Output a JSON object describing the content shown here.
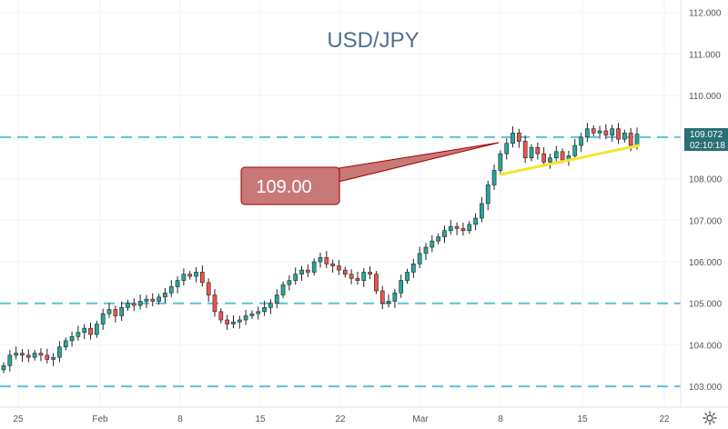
{
  "chart_data": {
    "type": "candlestick",
    "title": "USD/JPY",
    "x_tick_labels": [
      "25",
      "Feb",
      "8",
      "15",
      "22",
      "Mar",
      "8",
      "15",
      "22"
    ],
    "y_tick_labels": [
      "103.000",
      "104.000",
      "105.000",
      "106.000",
      "107.000",
      "108.000",
      "109.000",
      "110.000",
      "111.000",
      "112.000"
    ],
    "ylim": [
      102.5,
      112.3
    ],
    "price_label": {
      "value": "109.072",
      "time": "02:10:18"
    },
    "annotation": "109.00",
    "horizontal_levels": [
      109.0,
      105.0,
      103.0
    ],
    "trendline": {
      "from": [
        108.1,
        "Mar 8"
      ],
      "to": [
        108.8,
        "Mar 19"
      ]
    },
    "series": [
      {
        "points": [
          103.5,
          103.75,
          103.8,
          103.75,
          103.7,
          103.8,
          103.75,
          103.65,
          103.7,
          103.95,
          104.1,
          104.2,
          104.3,
          104.4,
          104.25,
          104.5,
          104.75,
          104.85,
          104.7,
          104.9,
          105.0,
          104.95,
          105.05,
          105.1,
          105.05,
          105.15,
          105.25,
          105.4,
          105.55,
          105.7,
          105.65,
          105.75,
          105.5,
          105.2,
          104.8,
          104.6,
          104.5,
          104.55,
          104.6,
          104.7,
          104.75,
          104.8,
          104.9,
          105.0,
          105.2,
          105.45,
          105.55,
          105.7,
          105.8,
          105.75,
          106.0,
          106.1,
          105.95,
          105.9,
          105.8,
          105.7,
          105.6,
          105.55,
          105.75,
          105.7,
          105.3,
          105.0,
          105.05,
          105.25,
          105.55,
          105.75,
          105.95,
          106.2,
          106.35,
          106.5,
          106.6,
          106.75,
          106.85,
          106.8,
          106.75,
          106.9,
          107.05,
          107.4,
          107.85,
          108.2,
          108.6,
          108.85,
          109.1,
          108.9,
          108.5,
          108.75,
          108.6,
          108.4,
          108.5,
          108.65,
          108.45,
          108.55,
          108.8,
          109.0,
          109.2,
          109.1,
          109.15,
          109.05,
          109.2,
          108.95,
          109.1,
          108.8,
          109.07
        ]
      }
    ]
  }
}
